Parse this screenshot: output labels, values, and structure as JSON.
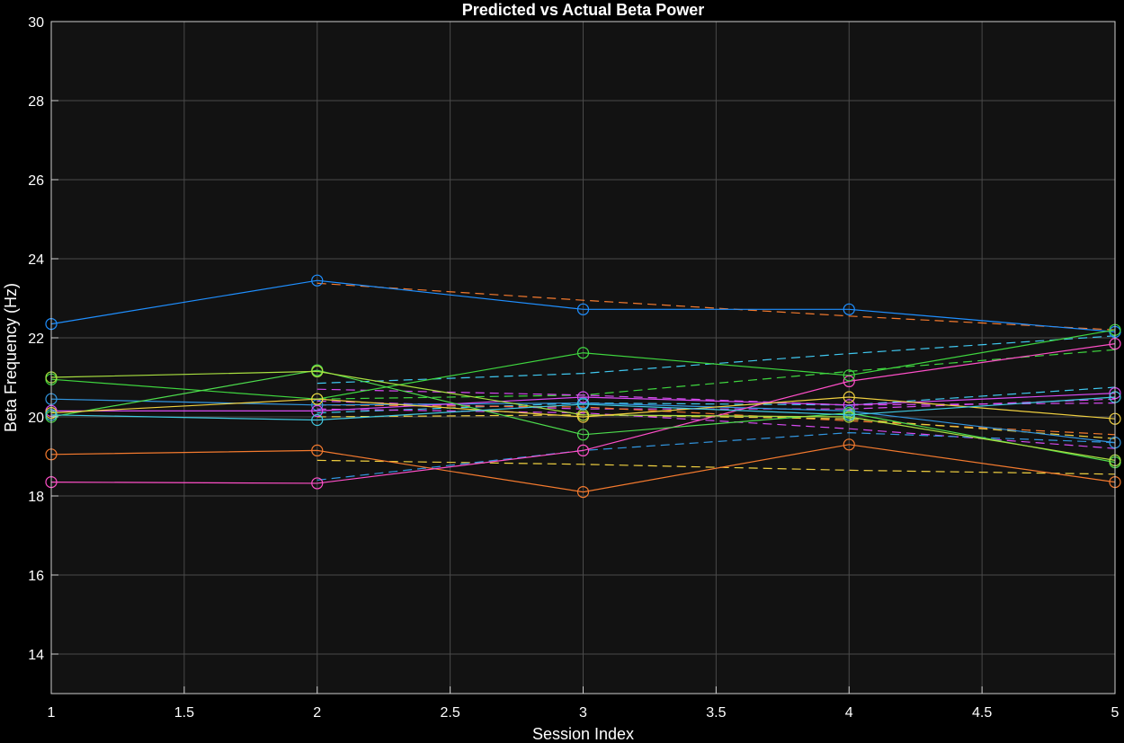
{
  "chart_data": {
    "type": "line",
    "title": "Predicted vs Actual Beta Power",
    "xlabel": "Session Index",
    "ylabel": "Beta Frequency (Hz)",
    "xlim": [
      1,
      5
    ],
    "ylim": [
      13,
      30
    ],
    "xticks": [
      1,
      1.5,
      2,
      2.5,
      3,
      3.5,
      4,
      4.5,
      5
    ],
    "yticks": [
      14,
      16,
      18,
      20,
      22,
      24,
      26,
      28,
      30
    ],
    "grid": true,
    "background": "#121212",
    "x": [
      1,
      2,
      3,
      4,
      5
    ],
    "actual_series": [
      {
        "color": "#1f8fff",
        "values": [
          22.35,
          23.45,
          22.72,
          22.72,
          22.15
        ]
      },
      {
        "color": "#3296e0",
        "values": [
          20.45,
          20.3,
          20.35,
          20.15,
          19.35
        ]
      },
      {
        "color": "#f47a2e",
        "values": [
          19.05,
          19.15,
          18.1,
          19.3,
          18.35
        ]
      },
      {
        "color": "#ff4fc8",
        "values": [
          18.35,
          18.32,
          19.15,
          20.9,
          21.85
        ]
      },
      {
        "color": "#d64bf0",
        "values": [
          20.15,
          20.15,
          20.5,
          20.3,
          20.6
        ]
      },
      {
        "color": "#3fd63f",
        "values": [
          20.95,
          20.45,
          21.62,
          21.05,
          22.2
        ]
      },
      {
        "color": "#4ddc4d",
        "values": [
          20.0,
          21.18,
          19.55,
          20.1,
          18.85
        ]
      },
      {
        "color": "#a8e040",
        "values": [
          21.0,
          21.15,
          20.05,
          20.0,
          18.9
        ]
      },
      {
        "color": "#f0d040",
        "values": [
          20.1,
          20.45,
          20.0,
          20.5,
          19.95
        ]
      },
      {
        "color": "#40c8e0",
        "values": [
          20.05,
          19.92,
          20.32,
          20.05,
          20.5
        ]
      }
    ],
    "predicted_series": [
      {
        "color": "#f47a2e",
        "values": [
          null,
          23.38,
          22.95,
          22.55,
          22.2
        ]
      },
      {
        "color": "#40c8f0",
        "values": [
          null,
          20.85,
          21.1,
          21.6,
          22.05
        ]
      },
      {
        "color": "#3fd63f",
        "values": [
          null,
          20.45,
          20.55,
          21.15,
          21.7
        ]
      },
      {
        "color": "#d64bf0",
        "values": [
          null,
          20.7,
          20.55,
          20.3,
          20.35
        ]
      },
      {
        "color": "#40c8f0",
        "values": [
          null,
          20.1,
          20.35,
          20.3,
          20.75
        ]
      },
      {
        "color": "#d64bf0",
        "values": [
          null,
          20.4,
          20.2,
          20.2,
          20.45
        ]
      },
      {
        "color": "#f47a2e",
        "values": [
          null,
          20.3,
          20.25,
          19.9,
          19.55
        ]
      },
      {
        "color": "#f0d040",
        "values": [
          null,
          20.0,
          20.05,
          19.95,
          19.45
        ]
      },
      {
        "color": "#d64bf0",
        "values": [
          null,
          20.2,
          20.1,
          19.7,
          19.2
        ]
      },
      {
        "color": "#f0d040",
        "values": [
          null,
          18.9,
          18.8,
          18.65,
          18.55
        ]
      },
      {
        "color": "#3296e0",
        "values": [
          null,
          18.4,
          19.15,
          19.6,
          19.35
        ]
      }
    ]
  }
}
